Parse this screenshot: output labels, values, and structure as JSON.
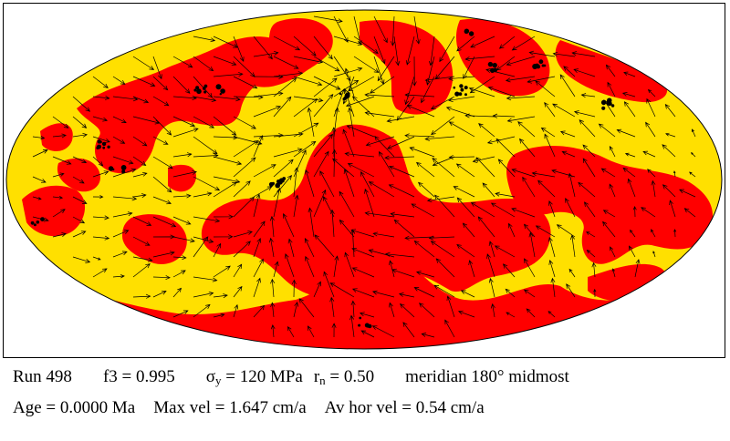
{
  "map": {
    "projection": "hammer-aitoff-equal-area",
    "colors": {
      "background": "#ffffff",
      "continent_yellow": "#ffe000",
      "oceanic_red": "#ff0000",
      "outline": "#000000",
      "velocity_arrows": "#000000",
      "hotspot_dots": "#000000"
    },
    "layers": [
      "yellow-region",
      "red-region",
      "velocity-arrow-field",
      "black-dots"
    ]
  },
  "caption": {
    "run": "Run 498",
    "f3": "f3 = 0.995",
    "sigma_symbol": "σ",
    "sigma_sub": "y",
    "sigma_value": " = 120 MPa",
    "r_symbol": "r",
    "r_sub": "n",
    "r_value": " = 0.50",
    "meridian": "meridian 180° midmost",
    "age": "Age = 0.0000 Ma",
    "max_vel": "Max vel = 1.647 cm/a",
    "av_hor_vel": "Av hor vel = 0.54 cm/a"
  }
}
